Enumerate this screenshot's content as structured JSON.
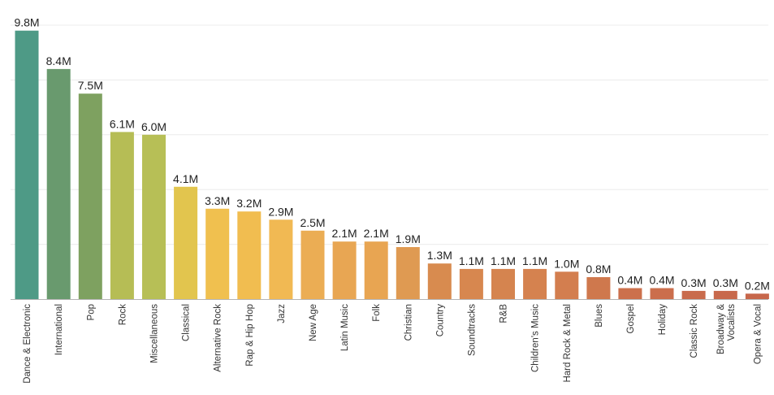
{
  "chart_data": {
    "type": "bar",
    "title": "",
    "xlabel": "",
    "ylabel": "",
    "ylim": [
      0,
      10.0
    ],
    "grid": true,
    "value_format": "{v}M",
    "categories": [
      "Dance & Electronic",
      "International",
      "Pop",
      "Rock",
      "Miscellaneous",
      "Classical",
      "Alternative Rock",
      "Rap & Hip Hop",
      "Jazz",
      "New Age",
      "Latin Music",
      "Folk",
      "Christian",
      "Country",
      "Soundtracks",
      "R&B",
      "Children's Music",
      "Hard Rock & Metal",
      "Blues",
      "Gospel",
      "Holiday",
      "Classic Rock",
      "Broadway & Vocalists",
      "Opera & Vocal"
    ],
    "values": [
      9.8,
      8.4,
      7.5,
      6.1,
      6.0,
      4.1,
      3.3,
      3.2,
      2.9,
      2.5,
      2.1,
      2.1,
      1.9,
      1.3,
      1.1,
      1.1,
      1.1,
      1.0,
      0.8,
      0.4,
      0.4,
      0.3,
      0.3,
      0.2
    ],
    "data_labels": [
      "9.8M",
      "8.4M",
      "7.5M",
      "6.1M",
      "6.0M",
      "4.1M",
      "3.3M",
      "3.2M",
      "2.9M",
      "2.5M",
      "2.1M",
      "2.1M",
      "1.9M",
      "1.3M",
      "1.1M",
      "1.1M",
      "1.1M",
      "1.0M",
      "0.8M",
      "0.4M",
      "0.4M",
      "0.3M",
      "0.3M",
      "0.2M"
    ],
    "colors": [
      "#4e9a86",
      "#699a6e",
      "#7ea160",
      "#b6bd55",
      "#b7bf56",
      "#e2c54e",
      "#f0c04f",
      "#f1bd50",
      "#f1b953",
      "#ebad54",
      "#e8a653",
      "#e8a552",
      "#df9a52",
      "#d88b4f",
      "#d7874f",
      "#d5844f",
      "#d5824f",
      "#d37e4f",
      "#cf784d",
      "#cc704c",
      "#cb6e4c",
      "#c96b4c",
      "#c8694c",
      "#c7674b"
    ]
  }
}
